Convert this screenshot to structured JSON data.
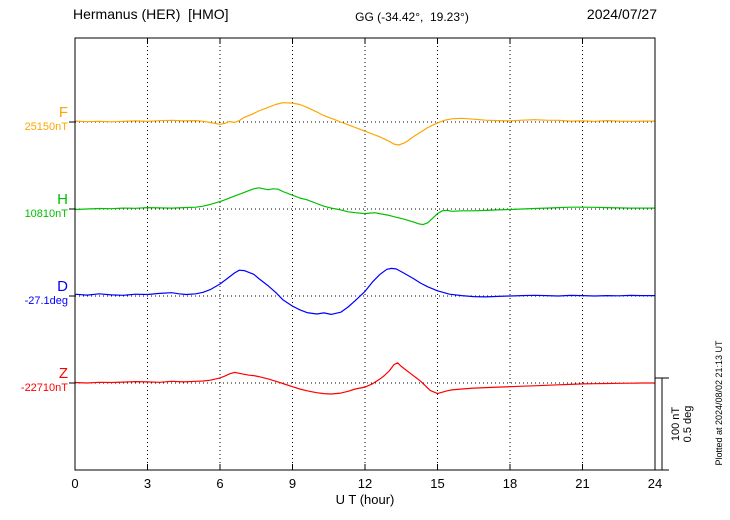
{
  "header": {
    "station": "Hermanus (HER)  [HMO]",
    "coords": "GG (-34.42°,  19.23°)",
    "date": "2024/07/27"
  },
  "scale_labels": {
    "nT": "100 nT",
    "deg": "0.5 deg"
  },
  "side_note": "Plotted at 2024/08/02 21:13 UT",
  "chart_data": {
    "type": "line",
    "title": "Hermanus (HER) [HMO] magnetogram for 2024/07/27",
    "xlabel": "U T (hour)",
    "xlim": [
      0,
      24
    ],
    "xticks": [
      0,
      3,
      6,
      9,
      12,
      15,
      18,
      21,
      24
    ],
    "grid": "dotted vertical lines at 3h intervals; dotted horizontal baseline per trace",
    "scale": {
      "nT_per_bar": 100,
      "deg_per_bar": 0.5
    },
    "series": [
      {
        "name": "F",
        "baseline_label": "25150nT",
        "unit": "nT",
        "color": "#FFA500",
        "points": [
          [
            0,
            1
          ],
          [
            0.5,
            0.3
          ],
          [
            1,
            0.8
          ],
          [
            1.5,
            0.2
          ],
          [
            2,
            0.8
          ],
          [
            2.5,
            1.2
          ],
          [
            3,
            0.6
          ],
          [
            3.5,
            1.4
          ],
          [
            4,
            1.8
          ],
          [
            4.5,
            1.2
          ],
          [
            5,
            1.5
          ],
          [
            5.3,
            0.8
          ],
          [
            5.6,
            -0.5
          ],
          [
            6,
            -2.5
          ],
          [
            6.2,
            -1.5
          ],
          [
            6.4,
            0.5
          ],
          [
            6.6,
            -0.5
          ],
          [
            6.8,
            1.5
          ],
          [
            7,
            5
          ],
          [
            7.3,
            8
          ],
          [
            7.6,
            12
          ],
          [
            8,
            16
          ],
          [
            8.3,
            19
          ],
          [
            8.6,
            21
          ],
          [
            9,
            20.5
          ],
          [
            9.3,
            19
          ],
          [
            9.6,
            16
          ],
          [
            10,
            11
          ],
          [
            10.3,
            7
          ],
          [
            10.6,
            4
          ],
          [
            11,
            0
          ],
          [
            11.3,
            -3
          ],
          [
            11.6,
            -6
          ],
          [
            12,
            -10
          ],
          [
            12.3,
            -13
          ],
          [
            12.6,
            -16
          ],
          [
            13,
            -21
          ],
          [
            13.2,
            -24
          ],
          [
            13.4,
            -25
          ],
          [
            13.6,
            -23
          ],
          [
            13.8,
            -20
          ],
          [
            14,
            -16
          ],
          [
            14.3,
            -11
          ],
          [
            14.6,
            -6
          ],
          [
            15,
            -1
          ],
          [
            15.3,
            2
          ],
          [
            15.6,
            3.5
          ],
          [
            16,
            4
          ],
          [
            16.5,
            3
          ],
          [
            17,
            2
          ],
          [
            17.5,
            1.5
          ],
          [
            18,
            1.2
          ],
          [
            18.5,
            2
          ],
          [
            19,
            2.5
          ],
          [
            19.5,
            2
          ],
          [
            20,
            1.8
          ],
          [
            20.5,
            1
          ],
          [
            21,
            1.2
          ],
          [
            21.5,
            0.8
          ],
          [
            22,
            1.5
          ],
          [
            22.5,
            1
          ],
          [
            23,
            0.8
          ],
          [
            23.5,
            1
          ],
          [
            24,
            1
          ]
        ]
      },
      {
        "name": "H",
        "baseline_label": "10810nT",
        "unit": "nT",
        "color": "#00C000",
        "points": [
          [
            0,
            -0.5
          ],
          [
            0.5,
            0
          ],
          [
            1,
            0.5
          ],
          [
            1.5,
            0.3
          ],
          [
            2,
            1
          ],
          [
            2.5,
            0.8
          ],
          [
            3,
            1.5
          ],
          [
            3.5,
            1.2
          ],
          [
            4,
            1
          ],
          [
            4.5,
            1.5
          ],
          [
            5,
            2
          ],
          [
            5.3,
            3
          ],
          [
            5.6,
            5
          ],
          [
            6,
            8
          ],
          [
            6.3,
            11
          ],
          [
            6.6,
            14
          ],
          [
            7,
            18
          ],
          [
            7.2,
            20
          ],
          [
            7.4,
            22
          ],
          [
            7.6,
            23
          ],
          [
            7.8,
            22
          ],
          [
            8,
            21
          ],
          [
            8.2,
            22
          ],
          [
            8.4,
            21.5
          ],
          [
            8.6,
            19
          ],
          [
            9,
            15
          ],
          [
            9.3,
            12
          ],
          [
            9.6,
            10
          ],
          [
            10,
            6
          ],
          [
            10.3,
            3
          ],
          [
            10.6,
            1
          ],
          [
            11,
            -1
          ],
          [
            11.3,
            -3
          ],
          [
            11.6,
            -4
          ],
          [
            12,
            -5
          ],
          [
            12.2,
            -4.5
          ],
          [
            12.4,
            -4
          ],
          [
            12.6,
            -5
          ],
          [
            13,
            -7
          ],
          [
            13.3,
            -9
          ],
          [
            13.6,
            -11
          ],
          [
            14,
            -14
          ],
          [
            14.2,
            -16
          ],
          [
            14.4,
            -17
          ],
          [
            14.6,
            -15
          ],
          [
            14.8,
            -10
          ],
          [
            15,
            -5
          ],
          [
            15.2,
            -2
          ],
          [
            15.4,
            -1.5
          ],
          [
            15.6,
            -2.5
          ],
          [
            16,
            -2
          ],
          [
            16.5,
            -2
          ],
          [
            17,
            -1.5
          ],
          [
            17.5,
            -1
          ],
          [
            18,
            -0.5
          ],
          [
            18.5,
            0
          ],
          [
            19,
            0.5
          ],
          [
            19.5,
            1
          ],
          [
            20,
            1.5
          ],
          [
            20.5,
            2
          ],
          [
            21,
            2
          ],
          [
            21.5,
            1.8
          ],
          [
            22,
            1.5
          ],
          [
            22.5,
            1.2
          ],
          [
            23,
            1
          ],
          [
            23.5,
            1
          ],
          [
            24,
            1
          ]
        ]
      },
      {
        "name": "D",
        "baseline_label": "-27.1deg",
        "unit": "deg",
        "color": "#0000FF",
        "points": [
          [
            0,
            0.01
          ],
          [
            0.5,
            0.005
          ],
          [
            1,
            0.012
          ],
          [
            1.5,
            0.006
          ],
          [
            2,
            0.004
          ],
          [
            2.5,
            0.01
          ],
          [
            3,
            0.008
          ],
          [
            3.5,
            0.014
          ],
          [
            4,
            0.018
          ],
          [
            4.3,
            0.012
          ],
          [
            4.6,
            0.008
          ],
          [
            5,
            0.012
          ],
          [
            5.3,
            0.02
          ],
          [
            5.6,
            0.035
          ],
          [
            6,
            0.065
          ],
          [
            6.3,
            0.095
          ],
          [
            6.6,
            0.125
          ],
          [
            6.8,
            0.14
          ],
          [
            7,
            0.138
          ],
          [
            7.2,
            0.128
          ],
          [
            7.4,
            0.118
          ],
          [
            7.6,
            0.095
          ],
          [
            8,
            0.055
          ],
          [
            8.3,
            0.02
          ],
          [
            8.6,
            -0.02
          ],
          [
            9,
            -0.055
          ],
          [
            9.3,
            -0.075
          ],
          [
            9.6,
            -0.09
          ],
          [
            10,
            -0.098
          ],
          [
            10.3,
            -0.092
          ],
          [
            10.6,
            -0.1
          ],
          [
            11,
            -0.088
          ],
          [
            11.3,
            -0.06
          ],
          [
            11.6,
            -0.025
          ],
          [
            12,
            0.025
          ],
          [
            12.3,
            0.075
          ],
          [
            12.6,
            0.115
          ],
          [
            12.9,
            0.145
          ],
          [
            13.1,
            0.15
          ],
          [
            13.3,
            0.147
          ],
          [
            13.6,
            0.125
          ],
          [
            14,
            0.095
          ],
          [
            14.3,
            0.07
          ],
          [
            14.6,
            0.05
          ],
          [
            15,
            0.028
          ],
          [
            15.5,
            0.01
          ],
          [
            16,
            0.002
          ],
          [
            16.5,
            -0.003
          ],
          [
            17,
            -0.005
          ],
          [
            17.5,
            -0.002
          ],
          [
            18,
            0
          ],
          [
            18.5,
            0.002
          ],
          [
            19,
            0.004
          ],
          [
            19.5,
            0.002
          ],
          [
            20,
            0
          ],
          [
            20.5,
            0.003
          ],
          [
            21,
            0.002
          ],
          [
            21.5,
            0
          ],
          [
            22,
            0.002
          ],
          [
            22.5,
            0.001
          ],
          [
            23,
            0.003
          ],
          [
            23.5,
            0.002
          ],
          [
            24,
            0.002
          ]
        ]
      },
      {
        "name": "Z",
        "baseline_label": "-22710nT",
        "unit": "nT",
        "color": "#FF0000",
        "points": [
          [
            0,
            0.5
          ],
          [
            0.5,
            0
          ],
          [
            1,
            0.8
          ],
          [
            1.5,
            0.5
          ],
          [
            2,
            1
          ],
          [
            2.5,
            1.5
          ],
          [
            3,
            1.2
          ],
          [
            3.5,
            0.8
          ],
          [
            4,
            1.8
          ],
          [
            4.5,
            1.2
          ],
          [
            5,
            1.8
          ],
          [
            5.3,
            2.2
          ],
          [
            5.6,
            3
          ],
          [
            6,
            5.5
          ],
          [
            6.2,
            7.5
          ],
          [
            6.4,
            10
          ],
          [
            6.6,
            11.5
          ],
          [
            6.8,
            10.5
          ],
          [
            7,
            9.5
          ],
          [
            7.2,
            8.5
          ],
          [
            7.4,
            8
          ],
          [
            7.6,
            7
          ],
          [
            8,
            4.5
          ],
          [
            8.3,
            2
          ],
          [
            8.6,
            -0.5
          ],
          [
            9,
            -4
          ],
          [
            9.3,
            -6.5
          ],
          [
            9.6,
            -8.5
          ],
          [
            10,
            -10.5
          ],
          [
            10.3,
            -11.5
          ],
          [
            10.6,
            -12
          ],
          [
            11,
            -11
          ],
          [
            11.3,
            -9
          ],
          [
            11.6,
            -6.5
          ],
          [
            12,
            -4.5
          ],
          [
            12.3,
            -1
          ],
          [
            12.6,
            4
          ],
          [
            12.8,
            8
          ],
          [
            13,
            13
          ],
          [
            13.2,
            20
          ],
          [
            13.35,
            22
          ],
          [
            13.5,
            18
          ],
          [
            13.7,
            14
          ],
          [
            13.9,
            10
          ],
          [
            14.1,
            6
          ],
          [
            14.3,
            2
          ],
          [
            14.5,
            -3
          ],
          [
            14.7,
            -8
          ],
          [
            15,
            -11.5
          ],
          [
            15.2,
            -10
          ],
          [
            15.4,
            -8.5
          ],
          [
            15.6,
            -7.5
          ],
          [
            16,
            -6.5
          ],
          [
            16.5,
            -5.5
          ],
          [
            17,
            -5
          ],
          [
            17.5,
            -4.5
          ],
          [
            18,
            -4
          ],
          [
            18.5,
            -3.5
          ],
          [
            19,
            -3
          ],
          [
            19.5,
            -2.5
          ],
          [
            20,
            -2
          ],
          [
            20.5,
            -1.5
          ],
          [
            21,
            -1
          ],
          [
            21.5,
            -0.8
          ],
          [
            22,
            -0.5
          ],
          [
            22.5,
            -0.3
          ],
          [
            23,
            -0.2
          ],
          [
            23.5,
            0
          ],
          [
            24,
            0
          ]
        ]
      }
    ]
  }
}
